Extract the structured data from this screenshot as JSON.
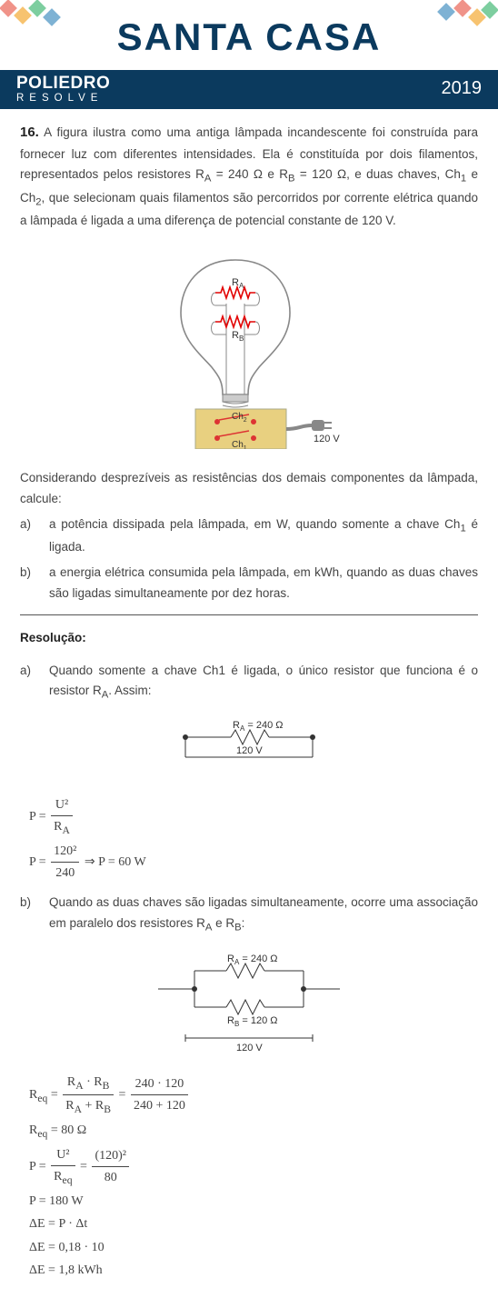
{
  "header": {
    "brand_main": "SANTA CASA",
    "poliedro_top": "POLIEDRO",
    "poliedro_bottom": "RESOLVE",
    "year": "2019",
    "brand_color": "#0b3a5e",
    "deco_colors": [
      "#e74c3c",
      "#f39c12",
      "#27ae60",
      "#2980b9",
      "#8e44ad"
    ]
  },
  "question": {
    "number": "16.",
    "body_html": "A figura ilustra como uma antiga lâmpada incandescente foi construída para fornecer luz com diferentes intensidades. Ela é constituída por dois filamentos, representados pelos resistores R<sub>A</sub> = 240 Ω e R<sub>B</sub> = 120 Ω, e duas chaves, Ch<sub>1</sub> e Ch<sub>2</sub>, que selecionam quais filamentos são percorridos por corrente elétrica quando a lâmpada é ligada a uma diferença de potencial constante de 120 V.",
    "figure_labels": {
      "ra": "R",
      "ra_sub": "A",
      "rb": "R",
      "rb_sub": "B",
      "ch1": "Ch",
      "ch1_sub": "1",
      "ch2": "Ch",
      "ch2_sub": "2",
      "voltage": "120 V"
    },
    "after_figure": "Considerando desprezíveis as resistências dos demais componentes da lâmpada, calcule:",
    "options": {
      "a": {
        "label": "a)",
        "text_html": "a potência dissipada pela lâmpada, em W, quando somente a chave Ch<sub>1</sub> é ligada."
      },
      "b": {
        "label": "b)",
        "text_html": "a energia elétrica consumida pela lâmpada, em kWh, quando as duas chaves são ligadas simultaneamente por dez horas."
      }
    }
  },
  "solution": {
    "header": "Resolução:",
    "a": {
      "label": "a)",
      "intro_html": "Quando somente a chave Ch1 é ligada, o único resistor que funciona é o resistor R<sub>A</sub>. Assim:",
      "diag": {
        "ra": "R",
        "ra_sub": "A",
        "ra_val": " = 240 Ω",
        "v": "120 V"
      },
      "eq1_left": "P = ",
      "eq1_num": "U²",
      "eq1_den_html": "R<sub>A</sub>",
      "eq2_left": "P = ",
      "eq2_num": "120²",
      "eq2_den": "240",
      "eq2_right": " ⇒ P = 60  W"
    },
    "b": {
      "label": "b)",
      "intro_html": "Quando as duas chaves são ligadas simultaneamente, ocorre uma associação em paralelo dos resistores R<sub>A</sub> e R<sub>B</sub>:",
      "diag": {
        "ra": "R",
        "ra_sub": "A",
        "ra_val": " = 240 Ω",
        "rb": "R",
        "rb_sub": "B",
        "rb_val": " = 120 Ω",
        "v": "120 V"
      },
      "eq1_left_html": "R<sub>eq</sub> = ",
      "eq1_num1_html": "R<sub>A</sub> · R<sub>B</sub>",
      "eq1_den1_html": "R<sub>A</sub> + R<sub>B</sub>",
      "eq1_mid": " = ",
      "eq1_num2": "240 · 120",
      "eq1_den2": "240 + 120",
      "eq2_html": "R<sub>eq</sub> = 80 Ω",
      "eq3_left": "P = ",
      "eq3_num1": "U²",
      "eq3_den1_html": "R<sub>eq</sub>",
      "eq3_mid": " = ",
      "eq3_num2": "(120)²",
      "eq3_den2": "80",
      "eq4": "P = 180 W",
      "eq5": "ΔE = P · Δt",
      "eq6": "ΔE = 0,18 · 10",
      "eq7": "ΔE = 1,8 kWh"
    }
  },
  "styling": {
    "text_color": "#444",
    "heading_color": "#222",
    "resistor_color": "#e20000",
    "line_color": "#444",
    "bulb_stroke": "#888",
    "base_fill": "#e8d080",
    "plug_fill": "#888"
  }
}
